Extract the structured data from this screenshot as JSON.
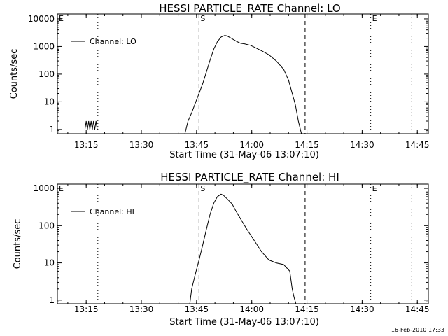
{
  "footer": {
    "timestamp": "16-Feb-2010 17:33"
  },
  "chart_data": [
    {
      "type": "line",
      "title": "HESSI PARTICLE_RATE Channel: LO",
      "xlabel": "Start Time (31-May-06 13:07:10)",
      "ylabel": "Counts/sec",
      "y_scale": "log",
      "xlim": [
        "13:07:10",
        "14:48:00"
      ],
      "ylim": [
        0.7,
        15000
      ],
      "x_ticks": [
        "13:15",
        "13:30",
        "13:45",
        "14:00",
        "14:15",
        "14:30",
        "14:45"
      ],
      "y_ticks": [
        1,
        10,
        100,
        1000,
        10000
      ],
      "y_tick_labels": [
        "1",
        "10",
        "100",
        "1000",
        "10000"
      ],
      "legend": {
        "position": "top-left",
        "entries": [
          "Channel: LO"
        ]
      },
      "markers": [
        {
          "label": "E",
          "time": "13:07:10",
          "style": "dotted"
        },
        {
          "label": "",
          "time": "13:18:10",
          "style": "dotted"
        },
        {
          "label": "S",
          "time": "13:45:40",
          "style": "dashed"
        },
        {
          "label": "",
          "time": "14:14:30",
          "style": "dashed"
        },
        {
          "label": "E",
          "time": "14:32:20",
          "style": "dotted"
        },
        {
          "label": "",
          "time": "14:43:30",
          "style": "dotted"
        }
      ],
      "series": [
        {
          "name": "Channel: LO",
          "segments": [
            {
              "x": [
                "13:14:40",
                "13:15:00",
                "13:15:20",
                "13:15:40",
                "13:16:00",
                "13:16:20",
                "13:16:40",
                "13:17:00",
                "13:17:20",
                "13:17:40",
                "13:18:00"
              ],
              "y": [
                1,
                2,
                1,
                2,
                1,
                2,
                1,
                2,
                1,
                2,
                1
              ]
            },
            {
              "x": [
                "13:41:50",
                "13:42:40",
                "13:43:40",
                "13:44:40",
                "13:45:40",
                "13:46:40",
                "13:47:40",
                "13:48:40",
                "13:49:40",
                "13:50:40",
                "13:51:40",
                "13:52:40",
                "13:53:20",
                "13:54:40",
                "13:56:00",
                "13:57:00",
                "13:58:00",
                "13:59:40",
                "14:01:00",
                "14:02:40",
                "14:04:40",
                "14:06:40",
                "14:08:40",
                "14:10:00",
                "14:11:00",
                "14:11:50",
                "14:12:40",
                "14:13:30"
              ],
              "y": [
                0.7,
                2,
                4,
                9,
                20,
                45,
                120,
                320,
                800,
                1500,
                2200,
                2500,
                2400,
                1900,
                1500,
                1300,
                1250,
                1100,
                900,
                700,
                500,
                300,
                150,
                60,
                20,
                8,
                2,
                0.7
              ]
            }
          ]
        }
      ]
    },
    {
      "type": "line",
      "title": "HESSI PARTICLE_RATE Channel: HI",
      "xlabel": "Start Time (31-May-06 13:07:10)",
      "ylabel": "Counts/sec",
      "y_scale": "log",
      "xlim": [
        "13:07:10",
        "14:48:00"
      ],
      "ylim": [
        0.8,
        1300
      ],
      "x_ticks": [
        "13:15",
        "13:30",
        "13:45",
        "14:00",
        "14:15",
        "14:30",
        "14:45"
      ],
      "y_ticks": [
        1,
        10,
        100,
        1000
      ],
      "y_tick_labels": [
        "1",
        "10",
        "100",
        "1000"
      ],
      "legend": {
        "position": "top-left",
        "entries": [
          "Channel: HI"
        ]
      },
      "markers": [
        {
          "label": "E",
          "time": "13:07:10",
          "style": "dotted"
        },
        {
          "label": "",
          "time": "13:18:10",
          "style": "dotted"
        },
        {
          "label": "S",
          "time": "13:45:40",
          "style": "dashed"
        },
        {
          "label": "",
          "time": "14:14:30",
          "style": "dashed"
        },
        {
          "label": "E",
          "time": "14:32:20",
          "style": "dotted"
        },
        {
          "label": "",
          "time": "14:43:30",
          "style": "dotted"
        }
      ],
      "series": [
        {
          "name": "Channel: HI",
          "segments": [
            {
              "x": [
                "13:43:10",
                "13:43:40",
                "13:44:40",
                "13:45:40",
                "13:46:40",
                "13:47:40",
                "13:48:40",
                "13:49:40",
                "13:50:40",
                "13:51:40",
                "13:52:20",
                "13:53:20",
                "13:54:40",
                "13:55:40",
                "13:57:00",
                "13:58:40",
                "14:00:40",
                "14:02:40",
                "14:04:40",
                "14:06:40",
                "14:08:40",
                "14:10:20",
                "14:11:00",
                "14:11:30",
                "14:12:00"
              ],
              "y": [
                0.8,
                2,
                5,
                12,
                30,
                80,
                200,
                400,
                600,
                700,
                650,
                520,
                380,
                250,
                150,
                80,
                40,
                20,
                12,
                10,
                9,
                6,
                2,
                1.2,
                0.8
              ]
            }
          ]
        }
      ]
    }
  ]
}
